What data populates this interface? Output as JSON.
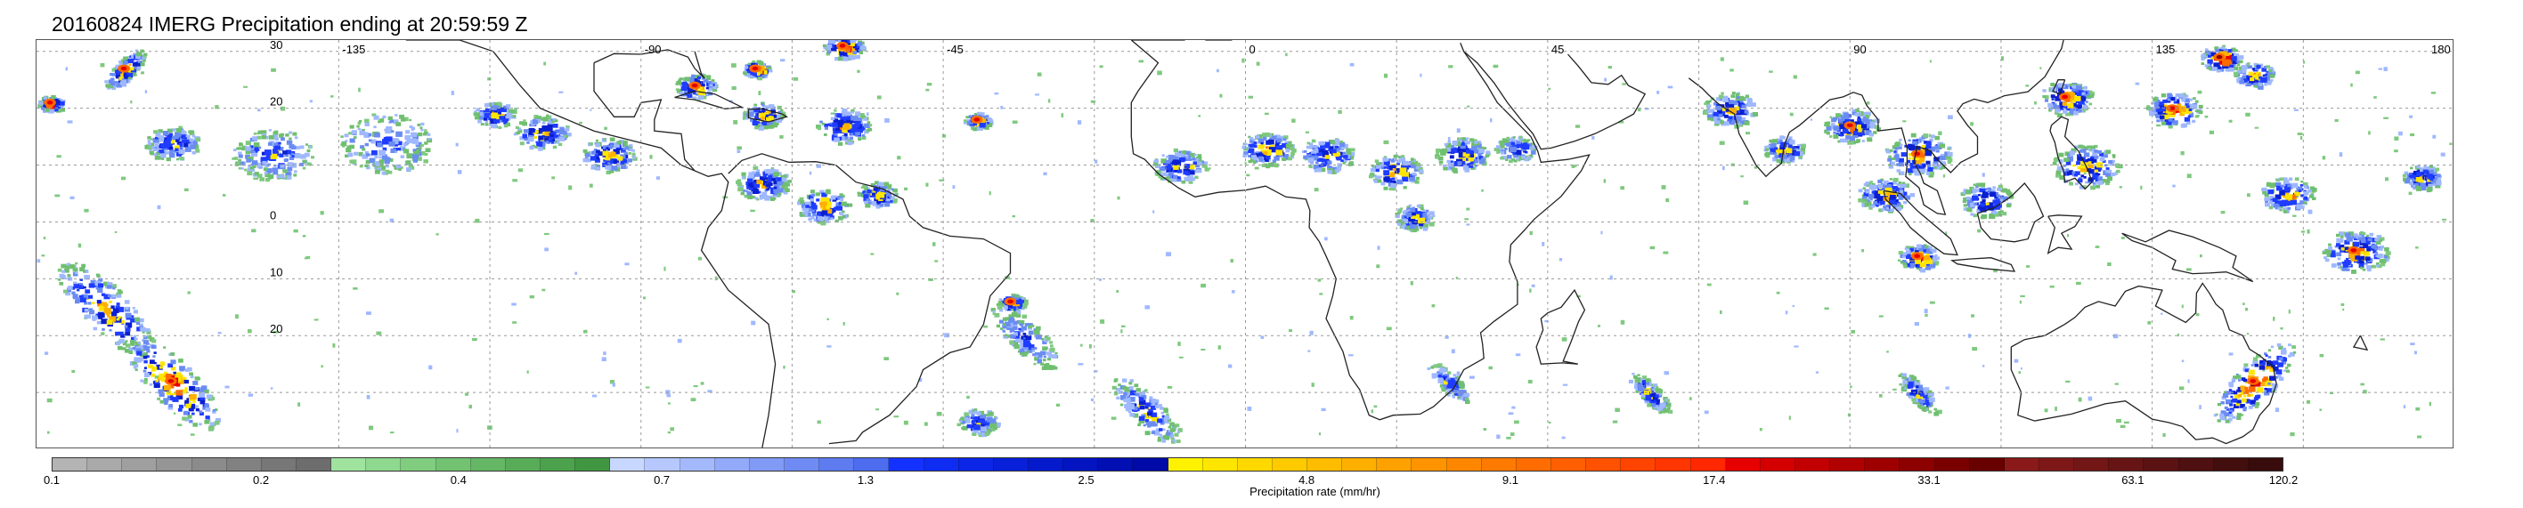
{
  "title": "20160824 IMERG Precipitation ending at 20:59:59 Z",
  "map": {
    "projection": "equirectangular",
    "lon_range": [
      -180,
      180
    ],
    "lat_range": [
      -40,
      32
    ],
    "grid": "dotted",
    "lat_labels": [
      {
        "value": 30,
        "text": "30"
      },
      {
        "value": 20,
        "text": "20"
      },
      {
        "value": 10,
        "text": ""
      },
      {
        "value": 0,
        "text": "0"
      },
      {
        "value": -10,
        "text": "10"
      },
      {
        "value": -20,
        "text": "20"
      },
      {
        "value": -30,
        "text": ""
      }
    ],
    "lon_labels": [
      {
        "value": -135,
        "text": "-135"
      },
      {
        "value": -90,
        "text": "-90"
      },
      {
        "value": -45,
        "text": "-45"
      },
      {
        "value": 0,
        "text": "0"
      },
      {
        "value": 45,
        "text": "45"
      },
      {
        "value": 90,
        "text": "90"
      },
      {
        "value": 135,
        "text": "135"
      },
      {
        "value": 180,
        "text": "180"
      }
    ],
    "grid_lons": [
      -135,
      -112.5,
      -90,
      -67.5,
      -45,
      -22.5,
      0,
      22.5,
      45,
      67.5,
      90,
      112.5,
      135,
      157.5
    ],
    "grid_lats": [
      30,
      20,
      10,
      0,
      -10,
      -20,
      -30
    ]
  },
  "colorbar": {
    "title": "Precipitation rate (mm/hr)",
    "segments": [
      "#b4b4b4",
      "#a9a9a9",
      "#9f9f9f",
      "#959595",
      "#8b8b8b",
      "#818181",
      "#777777",
      "#6d6d6d",
      "#9fe39f",
      "#8fd88f",
      "#80cd80",
      "#72c272",
      "#65b765",
      "#58ac58",
      "#4ca24c",
      "#419741",
      "#c8d7ff",
      "#b6c8ff",
      "#a4b9fc",
      "#92aaf9",
      "#819af6",
      "#6f8bf3",
      "#5e7bf0",
      "#4d6cee",
      "#1432ff",
      "#0f2cf2",
      "#0b26e6",
      "#0820d9",
      "#051acc",
      "#0314c0",
      "#020fb3",
      "#010aa7",
      "#fff200",
      "#ffe600",
      "#ffd800",
      "#ffca00",
      "#ffbc00",
      "#ffaf00",
      "#ffa100",
      "#ff9400",
      "#ff8700",
      "#ff7a00",
      "#ff6c00",
      "#ff5f00",
      "#ff5200",
      "#ff4400",
      "#ff3600",
      "#ff2800",
      "#e60000",
      "#d40000",
      "#c20000",
      "#b00000",
      "#9e0000",
      "#8c0000",
      "#7a0000",
      "#680000",
      "#8a1a1a",
      "#7e1818",
      "#721616",
      "#661414",
      "#5a1212",
      "#4e1010",
      "#430e0e",
      "#380c0c"
    ],
    "ticks": [
      {
        "text": "0.1",
        "frac": 0.0
      },
      {
        "text": "0.2",
        "frac": 0.0938
      },
      {
        "text": "0.4",
        "frac": 0.1823
      },
      {
        "text": "0.7",
        "frac": 0.2734
      },
      {
        "text": "1.3",
        "frac": 0.3647
      },
      {
        "text": "2.5",
        "frac": 0.4635
      },
      {
        "text": "4.8",
        "frac": 0.5623
      },
      {
        "text": "9.1",
        "frac": 0.6536
      },
      {
        "text": "17.4",
        "frac": 0.7449
      },
      {
        "text": "33.1",
        "frac": 0.8412
      },
      {
        "text": "63.1",
        "frac": 0.9325
      },
      {
        "text": "120.2",
        "frac": 1.0
      }
    ]
  },
  "precip_clusters": [
    {
      "lon": -167,
      "lat": 27,
      "spread": 3,
      "intensity": 0.7,
      "dir": 1
    },
    {
      "lon": -178,
      "lat": 21,
      "spread": 2,
      "intensity": 0.75,
      "dir": 0
    },
    {
      "lon": -160,
      "lat": 14,
      "spread": 4,
      "intensity": 0.5,
      "dir": 0
    },
    {
      "lon": -145,
      "lat": 12,
      "spread": 6,
      "intensity": 0.4,
      "dir": 0
    },
    {
      "lon": -128,
      "lat": 14,
      "spread": 7,
      "intensity": 0.3,
      "dir": 0
    },
    {
      "lon": -112,
      "lat": 19,
      "spread": 3,
      "intensity": 0.6,
      "dir": 0
    },
    {
      "lon": -105,
      "lat": 16,
      "spread": 4,
      "intensity": 0.55,
      "dir": 0
    },
    {
      "lon": -95,
      "lat": 12,
      "spread": 4,
      "intensity": 0.6,
      "dir": 0
    },
    {
      "lon": -82,
      "lat": 24,
      "spread": 3,
      "intensity": 0.7,
      "dir": 0
    },
    {
      "lon": -73,
      "lat": 27,
      "spread": 2,
      "intensity": 0.85,
      "dir": 0
    },
    {
      "lon": -60,
      "lat": 31,
      "spread": 3,
      "intensity": 0.8,
      "dir": 0
    },
    {
      "lon": -72,
      "lat": 19,
      "spread": 3,
      "intensity": 0.6,
      "dir": 0
    },
    {
      "lon": -60,
      "lat": 17,
      "spread": 4,
      "intensity": 0.6,
      "dir": 0
    },
    {
      "lon": -72,
      "lat": 7,
      "spread": 4,
      "intensity": 0.55,
      "dir": 0
    },
    {
      "lon": -63,
      "lat": 3,
      "spread": 4,
      "intensity": 0.6,
      "dir": 0
    },
    {
      "lon": -55,
      "lat": 5,
      "spread": 3,
      "intensity": 0.55,
      "dir": 0
    },
    {
      "lon": -40,
      "lat": 18,
      "spread": 2,
      "intensity": 0.7,
      "dir": 0
    },
    {
      "lon": -35,
      "lat": -14,
      "spread": 2,
      "intensity": 0.65,
      "dir": 0
    },
    {
      "lon": -33,
      "lat": -20,
      "spread": 5,
      "intensity": 0.35,
      "dir": -1
    },
    {
      "lon": -15,
      "lat": -33,
      "spread": 5,
      "intensity": 0.45,
      "dir": -1
    },
    {
      "lon": -170,
      "lat": -15,
      "spread": 7,
      "intensity": 0.6,
      "dir": -1
    },
    {
      "lon": -160,
      "lat": -28,
      "spread": 7,
      "intensity": 0.75,
      "dir": -1
    },
    {
      "lon": -40,
      "lat": -35,
      "spread": 3,
      "intensity": 0.45,
      "dir": 0
    },
    {
      "lon": -10,
      "lat": 10,
      "spread": 4,
      "intensity": 0.55,
      "dir": 0
    },
    {
      "lon": 3,
      "lat": 13,
      "spread": 4,
      "intensity": 0.6,
      "dir": 0
    },
    {
      "lon": 12,
      "lat": 12,
      "spread": 4,
      "intensity": 0.55,
      "dir": 0
    },
    {
      "lon": 22,
      "lat": 9,
      "spread": 4,
      "intensity": 0.6,
      "dir": 0
    },
    {
      "lon": 32,
      "lat": 12,
      "spread": 4,
      "intensity": 0.6,
      "dir": 0
    },
    {
      "lon": 25,
      "lat": 1,
      "spread": 3,
      "intensity": 0.5,
      "dir": 0
    },
    {
      "lon": 40,
      "lat": 13,
      "spread": 3,
      "intensity": 0.45,
      "dir": 0
    },
    {
      "lon": 72,
      "lat": 20,
      "spread": 4,
      "intensity": 0.55,
      "dir": 0
    },
    {
      "lon": 80,
      "lat": 13,
      "spread": 3,
      "intensity": 0.6,
      "dir": 0
    },
    {
      "lon": 90,
      "lat": 17,
      "spread": 4,
      "intensity": 0.65,
      "dir": 0
    },
    {
      "lon": 100,
      "lat": 12,
      "spread": 5,
      "intensity": 0.65,
      "dir": 0
    },
    {
      "lon": 95,
      "lat": 5,
      "spread": 4,
      "intensity": 0.6,
      "dir": 0
    },
    {
      "lon": 110,
      "lat": 4,
      "spread": 4,
      "intensity": 0.55,
      "dir": 0
    },
    {
      "lon": 100,
      "lat": -6,
      "spread": 3,
      "intensity": 0.8,
      "dir": 0
    },
    {
      "lon": 125,
      "lat": 10,
      "spread": 5,
      "intensity": 0.6,
      "dir": 0
    },
    {
      "lon": 122,
      "lat": 22,
      "spread": 4,
      "intensity": 0.7,
      "dir": 0
    },
    {
      "lon": 138,
      "lat": 20,
      "spread": 4,
      "intensity": 0.75,
      "dir": 0
    },
    {
      "lon": 145,
      "lat": 29,
      "spread": 3,
      "intensity": 0.95,
      "dir": 0
    },
    {
      "lon": 150,
      "lat": 26,
      "spread": 3,
      "intensity": 0.6,
      "dir": 0
    },
    {
      "lon": 155,
      "lat": 5,
      "spread": 4,
      "intensity": 0.6,
      "dir": 0
    },
    {
      "lon": 165,
      "lat": -5,
      "spread": 5,
      "intensity": 0.65,
      "dir": 0
    },
    {
      "lon": 175,
      "lat": 8,
      "spread": 3,
      "intensity": 0.6,
      "dir": 0
    },
    {
      "lon": 150,
      "lat": -28,
      "spread": 6,
      "intensity": 0.8,
      "dir": 1
    },
    {
      "lon": 100,
      "lat": -30,
      "spread": 3,
      "intensity": 0.45,
      "dir": -1
    },
    {
      "lon": 60,
      "lat": -30,
      "spread": 3,
      "intensity": 0.5,
      "dir": -1
    },
    {
      "lon": 30,
      "lat": -28,
      "spread": 3,
      "intensity": 0.4,
      "dir": -1
    }
  ]
}
